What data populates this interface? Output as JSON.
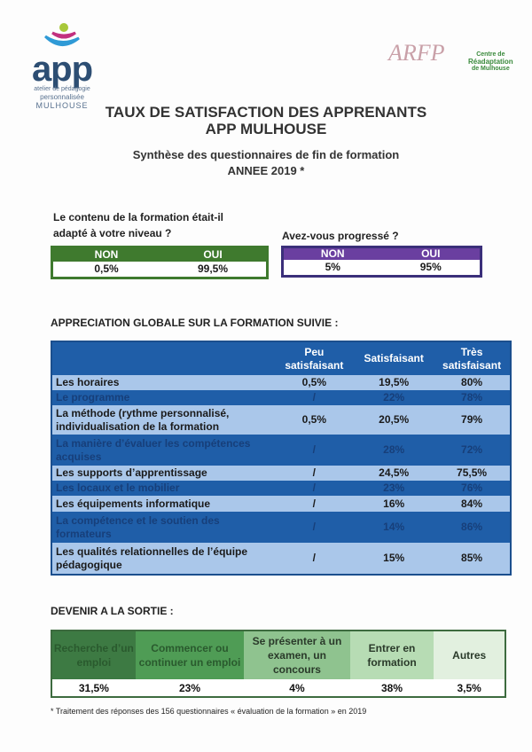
{
  "logos": {
    "app": {
      "word": "app",
      "line1": "atelier de pédagogie",
      "line2": "personnalisée",
      "line3": "MULHOUSE"
    },
    "arfp": {
      "word": "ARFP"
    },
    "cdr": {
      "line1": "Centre de",
      "line2": "Réadaptation",
      "line3": "de Mulhouse"
    }
  },
  "title": {
    "line1": "TAUX DE SATISFACTION DES APPRENANTS",
    "line2": "APP MULHOUSE"
  },
  "subtitle": {
    "line1": "Synthèse des questionnaires de fin de formation",
    "line2": "ANNEE 2019 *"
  },
  "q1": {
    "line1": "Le contenu de la formation était-il",
    "line2": "adapté à votre niveau ?",
    "non_label": "NON",
    "oui_label": "OUI",
    "non": "0,5%",
    "oui": "99,5%",
    "color": "#3f7a2e"
  },
  "q2": {
    "line1": "Avez-vous progressé ?",
    "non_label": "NON",
    "oui_label": "OUI",
    "non": "5%",
    "oui": "95%",
    "color": "#6a3fa0"
  },
  "appreciation": {
    "heading": "APPRECIATION GLOBALE SUR LA FORMATION SUIVIE :",
    "columns": [
      "",
      "Peu satisfaisant",
      "Satisfaisant",
      "Très satisfaisant"
    ],
    "rows": [
      {
        "label": "Les horaires",
        "peu": "0,5%",
        "sat": "19,5%",
        "tres": "80%"
      },
      {
        "label": "Le programme",
        "peu": "/",
        "sat": "22%",
        "tres": "78%"
      },
      {
        "label": "La méthode (rythme personnalisé, individualisation de la formation",
        "peu": "0,5%",
        "sat": "20,5%",
        "tres": "79%"
      },
      {
        "label": "La manière d’évaluer les compétences acquises",
        "peu": "/",
        "sat": "28%",
        "tres": "72%"
      },
      {
        "label": "Les supports d’apprentissage",
        "peu": "/",
        "sat": "24,5%",
        "tres": "75,5%"
      },
      {
        "label": "Les locaux et le mobilier",
        "peu": "/",
        "sat": "23%",
        "tres": "76%"
      },
      {
        "label": "Les équipements informatique",
        "peu": "/",
        "sat": "16%",
        "tres": "84%"
      },
      {
        "label": "La compétence et le soutien des formateurs",
        "peu": "/",
        "sat": "14%",
        "tres": "86%"
      },
      {
        "label": "Les qualités relationnelles de l’équipe pédagogique",
        "peu": "/",
        "sat": "15%",
        "tres": "85%"
      }
    ]
  },
  "devenir": {
    "heading": "DEVENIR A LA SORTIE :",
    "items": [
      {
        "label": "Recherche d’un emploi",
        "value": "31,5%",
        "color": "#3d7a43"
      },
      {
        "label": "Commencer ou continuer un emploi",
        "value": "23%",
        "color": "#4f9c55"
      },
      {
        "label": "Se présenter à un examen, un concours",
        "value": "4%",
        "color": "#8fc38f"
      },
      {
        "label": "Entrer en formation",
        "value": "38%",
        "color": "#b7dcb4"
      },
      {
        "label": "Autres",
        "value": "3,5%",
        "color": "#e2f0df"
      }
    ]
  },
  "footnote": "* Traitement des réponses des 156 questionnaires « évaluation de la formation » en 2019"
}
